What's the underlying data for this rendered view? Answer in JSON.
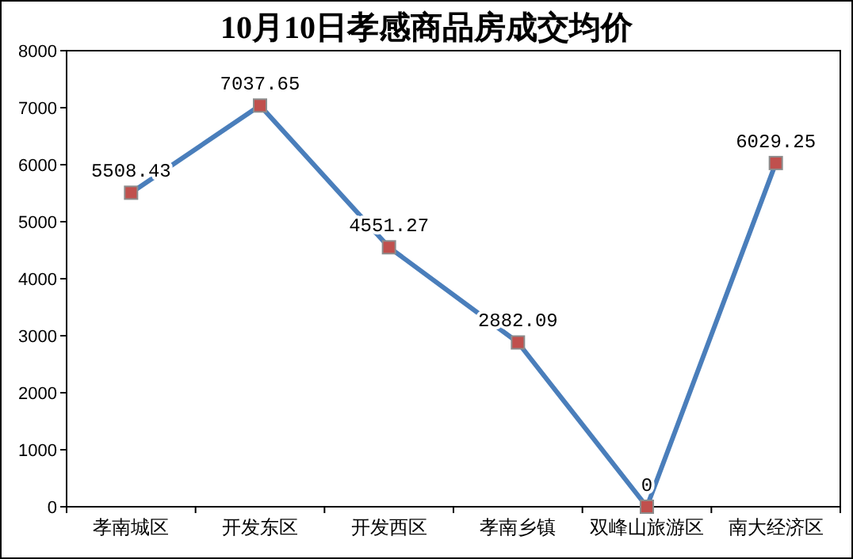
{
  "chart_data": {
    "type": "line",
    "title": "10月10日孝感商品房成交均价",
    "categories": [
      "孝南城区",
      "开发东区",
      "开发西区",
      "孝南乡镇",
      "双峰山旅游区",
      "南大经济区"
    ],
    "series": [
      {
        "color": "#4a7ebb",
        "values": [
          5508.43,
          7037.65,
          4551.27,
          2882.09,
          0,
          6029.25
        ]
      }
    ],
    "ylim": [
      0,
      8000
    ],
    "yticks": [
      0,
      1000,
      2000,
      3000,
      4000,
      5000,
      6000,
      7000,
      8000
    ],
    "marker": "square",
    "data_labels": true,
    "grid": false
  }
}
